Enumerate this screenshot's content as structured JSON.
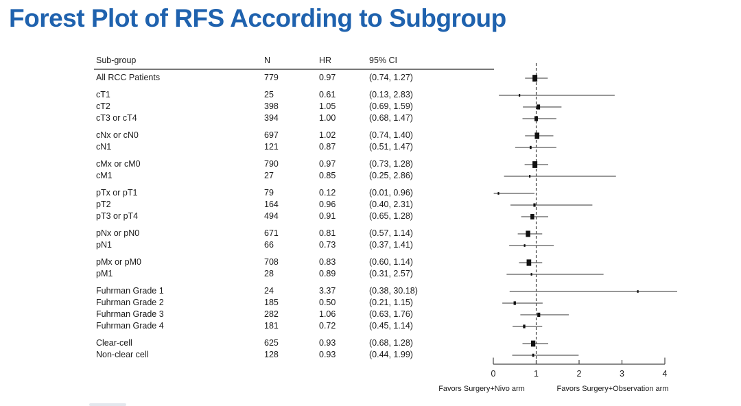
{
  "title": {
    "text": "Forest Plot of RFS According to Subgroup",
    "color": "#1f62ae"
  },
  "table": {
    "headers": [
      "Sub-group",
      "N",
      "HR",
      "95% CI"
    ]
  },
  "chart_data": {
    "type": "forest",
    "title": "Forest Plot of RFS According to Subgroup",
    "x_ticks": [
      "0",
      "1",
      "2",
      "3",
      "4"
    ],
    "xlim": [
      0,
      4
    ],
    "reference_line": 1,
    "favors_left_label": "Favors Surgery+Nivo arm",
    "favors_right_label": "Favors Surgery+Observation arm",
    "marker_color": "#111111",
    "ci_line_color": "#5a5a5a",
    "groups": [
      {
        "rows": [
          {
            "label": "All RCC Patients",
            "n": "779",
            "hr": "0.97",
            "ci": "(0.74, 1.27)",
            "hr_val": 0.97,
            "lo": 0.74,
            "hi": 1.27
          }
        ]
      },
      {
        "rows": [
          {
            "label": "cT1",
            "n": "25",
            "hr": "0.61",
            "ci": "(0.13, 2.83)",
            "hr_val": 0.61,
            "lo": 0.13,
            "hi": 2.83
          },
          {
            "label": "cT2",
            "n": "398",
            "hr": "1.05",
            "ci": "(0.69, 1.59)",
            "hr_val": 1.05,
            "lo": 0.69,
            "hi": 1.59
          },
          {
            "label": "cT3 or cT4",
            "n": "394",
            "hr": "1.00",
            "ci": "(0.68, 1.47)",
            "hr_val": 1.0,
            "lo": 0.68,
            "hi": 1.47
          }
        ]
      },
      {
        "rows": [
          {
            "label": "cNx or cN0",
            "n": "697",
            "hr": "1.02",
            "ci": "(0.74, 1.40)",
            "hr_val": 1.02,
            "lo": 0.74,
            "hi": 1.4
          },
          {
            "label": "cN1",
            "n": "121",
            "hr": "0.87",
            "ci": "(0.51, 1.47)",
            "hr_val": 0.87,
            "lo": 0.51,
            "hi": 1.47
          }
        ]
      },
      {
        "rows": [
          {
            "label": "cMx or cM0",
            "n": "790",
            "hr": "0.97",
            "ci": "(0.73, 1.28)",
            "hr_val": 0.97,
            "lo": 0.73,
            "hi": 1.28
          },
          {
            "label": "cM1",
            "n": "27",
            "hr": "0.85",
            "ci": "(0.25, 2.86)",
            "hr_val": 0.85,
            "lo": 0.25,
            "hi": 2.86
          }
        ]
      },
      {
        "rows": [
          {
            "label": "pTx or pT1",
            "n": "79",
            "hr": "0.12",
            "ci": "(0.01, 0.96)",
            "hr_val": 0.12,
            "lo": 0.01,
            "hi": 0.96
          },
          {
            "label": "pT2",
            "n": "164",
            "hr": "0.96",
            "ci": "(0.40, 2.31)",
            "hr_val": 0.96,
            "lo": 0.4,
            "hi": 2.31
          },
          {
            "label": "pT3 or pT4",
            "n": "494",
            "hr": "0.91",
            "ci": "(0.65, 1.28)",
            "hr_val": 0.91,
            "lo": 0.65,
            "hi": 1.28
          }
        ]
      },
      {
        "rows": [
          {
            "label": "pNx or pN0",
            "n": "671",
            "hr": "0.81",
            "ci": "(0.57, 1.14)",
            "hr_val": 0.81,
            "lo": 0.57,
            "hi": 1.14
          },
          {
            "label": "pN1",
            "n": "66",
            "hr": "0.73",
            "ci": "(0.37, 1.41)",
            "hr_val": 0.73,
            "lo": 0.37,
            "hi": 1.41
          }
        ]
      },
      {
        "rows": [
          {
            "label": "pMx or pM0",
            "n": "708",
            "hr": "0.83",
            "ci": "(0.60, 1.14)",
            "hr_val": 0.83,
            "lo": 0.6,
            "hi": 1.14
          },
          {
            "label": "pM1",
            "n": "28",
            "hr": "0.89",
            "ci": "(0.31, 2.57)",
            "hr_val": 0.89,
            "lo": 0.31,
            "hi": 2.57
          }
        ]
      },
      {
        "rows": [
          {
            "label": "Fuhrman Grade 1",
            "n": "24",
            "hr": "3.37",
            "ci": "(0.38, 30.18)",
            "hr_val": 3.37,
            "lo": 0.38,
            "hi": 30.18
          },
          {
            "label": "Fuhrman Grade 2",
            "n": "185",
            "hr": "0.50",
            "ci": "(0.21, 1.15)",
            "hr_val": 0.5,
            "lo": 0.21,
            "hi": 1.15
          },
          {
            "label": "Fuhrman Grade 3",
            "n": "282",
            "hr": "1.06",
            "ci": "(0.63, 1.76)",
            "hr_val": 1.06,
            "lo": 0.63,
            "hi": 1.76
          },
          {
            "label": "Fuhrman Grade 4",
            "n": "181",
            "hr": "0.72",
            "ci": "(0.45, 1.14)",
            "hr_val": 0.72,
            "lo": 0.45,
            "hi": 1.14
          }
        ]
      },
      {
        "rows": [
          {
            "label": "Clear-cell",
            "n": "625",
            "hr": "0.93",
            "ci": "(0.68, 1.28)",
            "hr_val": 0.93,
            "lo": 0.68,
            "hi": 1.28
          },
          {
            "label": "Non-clear cell",
            "n": "128",
            "hr": "0.93",
            "ci": "(0.44, 1.99)",
            "hr_val": 0.93,
            "lo": 0.44,
            "hi": 1.99
          }
        ]
      }
    ]
  }
}
